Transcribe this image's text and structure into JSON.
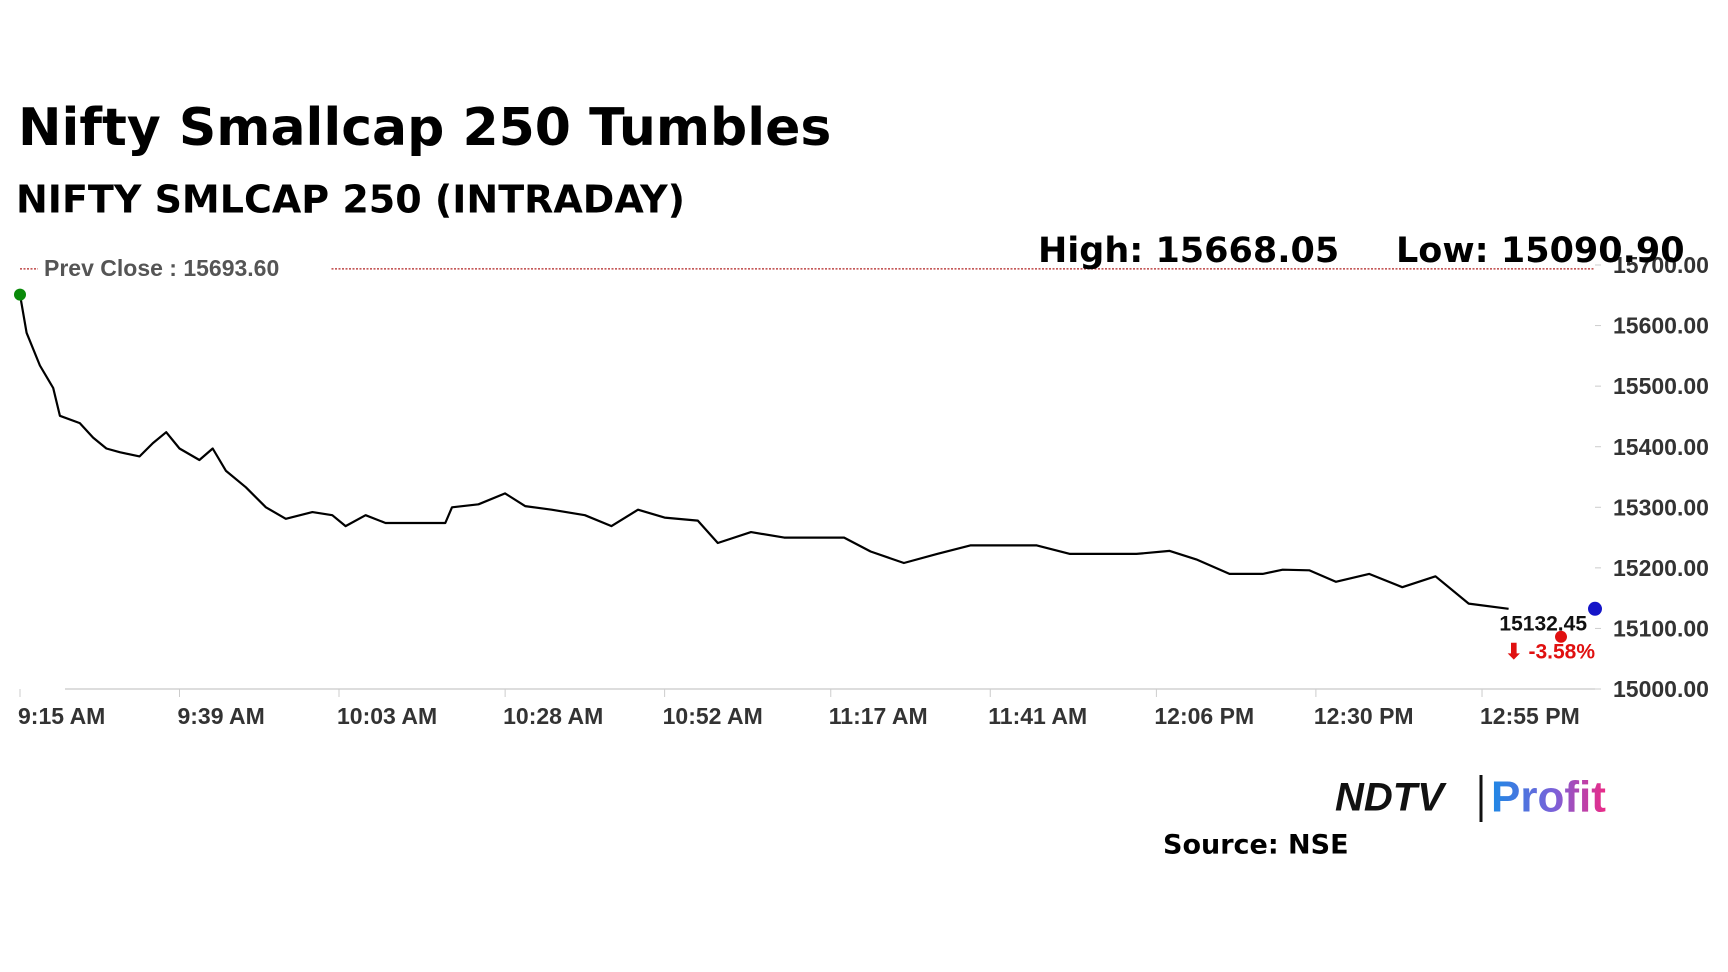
{
  "chart_data": {
    "type": "line",
    "title": "Nifty Smallcap 250 Tumbles",
    "subtitle": "NIFTY SMLCAP 250 (INTRADAY)",
    "high_label": "High: 15668.05",
    "low_label": "Low: 15090.90",
    "prev_close": {
      "value": 15693.6,
      "label": "Prev Close : 15693.60",
      "color": "#b22222"
    },
    "last_value_label": "15132.45",
    "change_label": "⬇ -3.58%",
    "x": [
      555,
      556,
      558,
      560,
      561,
      564,
      566,
      568,
      570,
      573,
      575,
      577,
      579,
      582,
      584,
      586,
      589,
      592,
      595,
      599,
      602,
      604,
      607,
      610,
      615,
      619,
      620,
      624,
      628,
      631,
      635,
      640,
      644,
      648,
      652,
      657,
      660,
      665,
      670,
      675,
      679,
      683,
      688,
      693,
      698,
      703,
      708,
      713,
      718,
      723,
      728,
      732,
      737,
      742,
      745,
      749,
      753,
      758,
      763,
      768,
      773,
      779
    ],
    "series": [
      {
        "name": "NIFTY SMLCAP 250",
        "color": "#000000",
        "values": [
          15651,
          15588,
          15534,
          15497,
          15451,
          15439,
          15415,
          15397,
          15391,
          15384,
          15406,
          15424,
          15397,
          15378,
          15397,
          15360,
          15333,
          15300,
          15281,
          15292,
          15287,
          15269,
          15287,
          15274,
          15274,
          15274,
          15300,
          15305,
          15323,
          15302,
          15296,
          15287,
          15269,
          15296,
          15283,
          15278,
          15241,
          15259,
          15250,
          15250,
          15250,
          15227,
          15208,
          15223,
          15237,
          15237,
          15237,
          15223,
          15223,
          15223,
          15228,
          15214,
          15190,
          15190,
          15197,
          15196,
          15177,
          15190,
          15168,
          15186,
          15141,
          15132.45
        ]
      }
    ],
    "xlim": [
      555,
      792
    ],
    "ylim": [
      15000,
      15700
    ],
    "xticks": [
      {
        "value": 555,
        "label": "9:15 AM"
      },
      {
        "value": 579,
        "label": "9:39 AM"
      },
      {
        "value": 603,
        "label": "10:03 AM"
      },
      {
        "value": 628,
        "label": "10:28 AM"
      },
      {
        "value": 652,
        "label": "10:52 AM"
      },
      {
        "value": 677,
        "label": "11:17 AM"
      },
      {
        "value": 701,
        "label": "11:41 AM"
      },
      {
        "value": 726,
        "label": "12:06 PM"
      },
      {
        "value": 750,
        "label": "12:30 PM"
      },
      {
        "value": 775,
        "label": "12:55 PM"
      }
    ],
    "yticks": [
      {
        "value": 15000,
        "label": "15000.00"
      },
      {
        "value": 15100,
        "label": "15100.00"
      },
      {
        "value": 15200,
        "label": "15200.00"
      },
      {
        "value": 15300,
        "label": "15300.00"
      },
      {
        "value": 15400,
        "label": "15400.00"
      },
      {
        "value": 15500,
        "label": "15500.00"
      },
      {
        "value": 15600,
        "label": "15600.00"
      },
      {
        "value": 15700,
        "label": "15700.00"
      }
    ],
    "grid": false
  },
  "logo": {
    "left": "NDTV",
    "right": "Profit"
  },
  "source": "Source: NSE"
}
